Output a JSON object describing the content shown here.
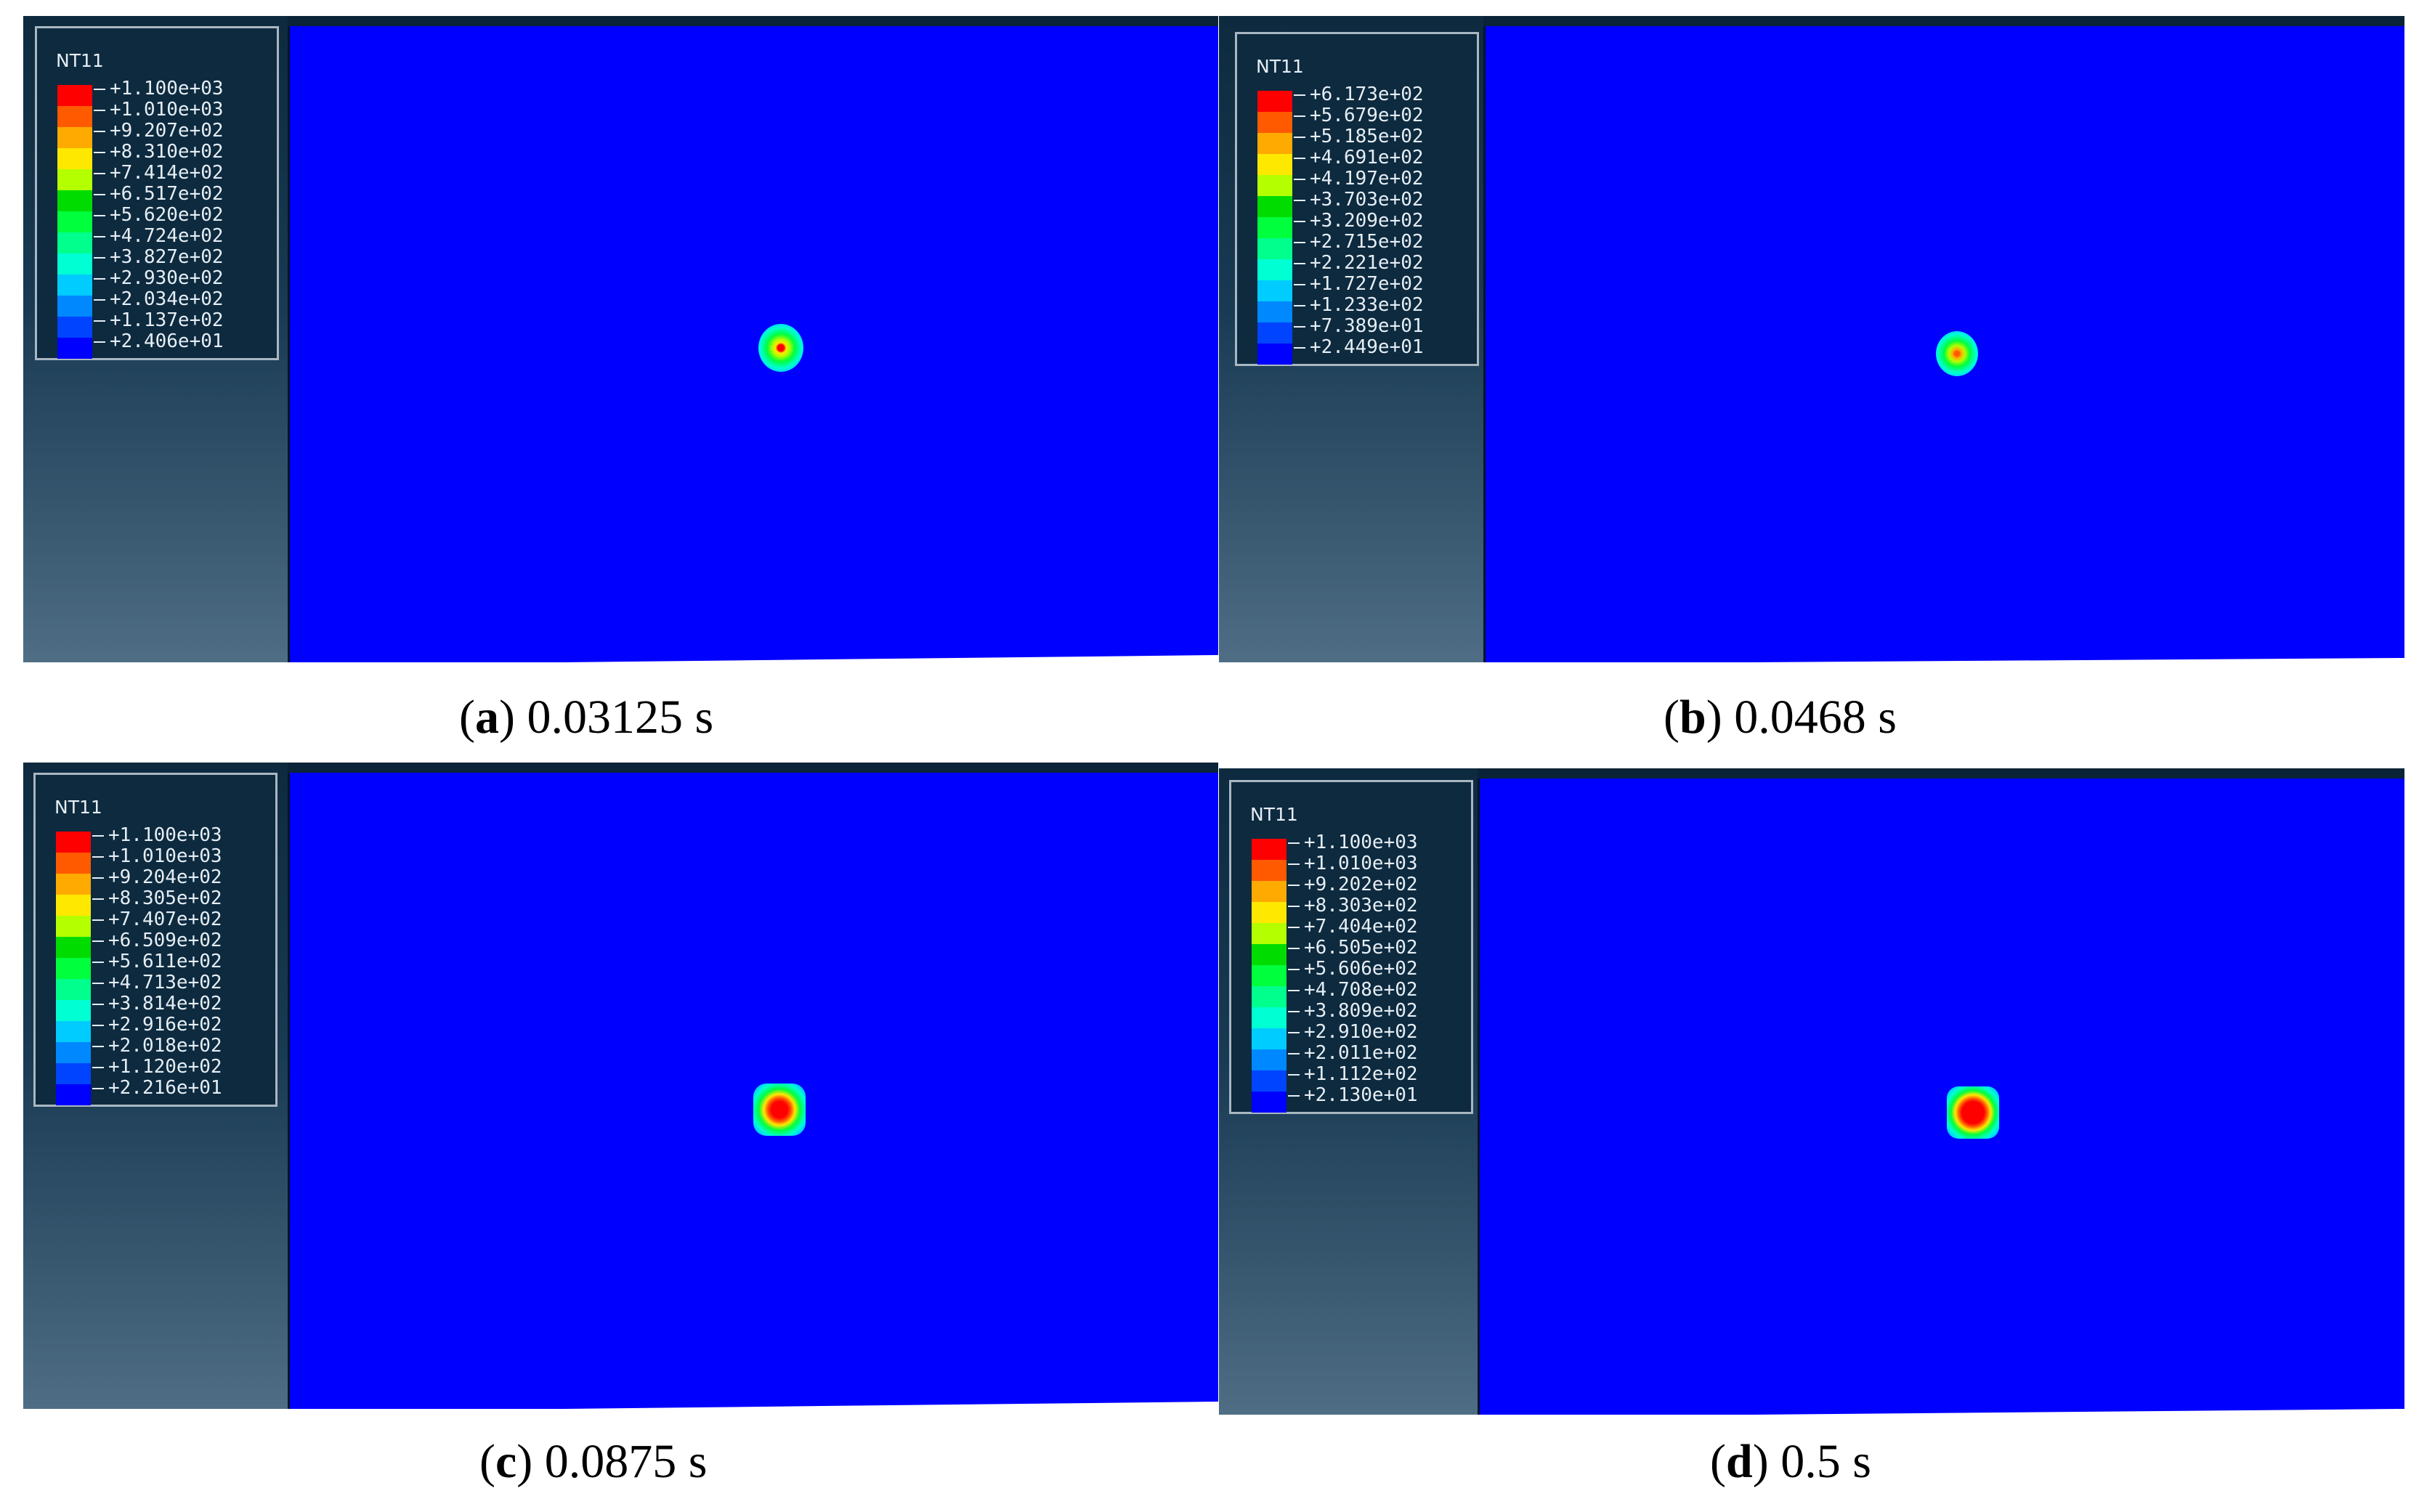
{
  "legend_colors": [
    "#ff0000",
    "#ff5a00",
    "#ffaa00",
    "#ffe800",
    "#b4ff00",
    "#00dc00",
    "#00ff3c",
    "#00ff8c",
    "#00ffd2",
    "#00ccff",
    "#0088ff",
    "#0044ff",
    "#0000ff"
  ],
  "panels": [
    {
      "id": "a",
      "legend_title": "NT11",
      "ticks": [
        "+1.100e+03",
        "+1.010e+03",
        "+9.207e+02",
        "+8.310e+02",
        "+7.414e+02",
        "+6.517e+02",
        "+5.620e+02",
        "+4.724e+02",
        "+3.827e+02",
        "+2.930e+02",
        "+2.034e+02",
        "+1.137e+02",
        "+2.406e+01"
      ],
      "caption_letter": "a",
      "caption_text": "0.03125 s"
    },
    {
      "id": "b",
      "legend_title": "NT11",
      "ticks": [
        "+6.173e+02",
        "+5.679e+02",
        "+5.185e+02",
        "+4.691e+02",
        "+4.197e+02",
        "+3.703e+02",
        "+3.209e+02",
        "+2.715e+02",
        "+2.221e+02",
        "+1.727e+02",
        "+1.233e+02",
        "+7.389e+01",
        "+2.449e+01"
      ],
      "caption_letter": "b",
      "caption_text": "0.0468 s"
    },
    {
      "id": "c",
      "legend_title": "NT11",
      "ticks": [
        "+1.100e+03",
        "+1.010e+03",
        "+9.204e+02",
        "+8.305e+02",
        "+7.407e+02",
        "+6.509e+02",
        "+5.611e+02",
        "+4.713e+02",
        "+3.814e+02",
        "+2.916e+02",
        "+2.018e+02",
        "+1.120e+02",
        "+2.216e+01"
      ],
      "caption_letter": "c",
      "caption_text": "0.0875 s"
    },
    {
      "id": "d",
      "legend_title": "NT11",
      "ticks": [
        "+1.100e+03",
        "+1.010e+03",
        "+9.202e+02",
        "+8.303e+02",
        "+7.404e+02",
        "+6.505e+02",
        "+5.606e+02",
        "+4.708e+02",
        "+3.809e+02",
        "+2.910e+02",
        "+2.011e+02",
        "+1.112e+02",
        "+2.130e+01"
      ],
      "caption_letter": "d",
      "caption_text": "0.5 s"
    }
  ]
}
